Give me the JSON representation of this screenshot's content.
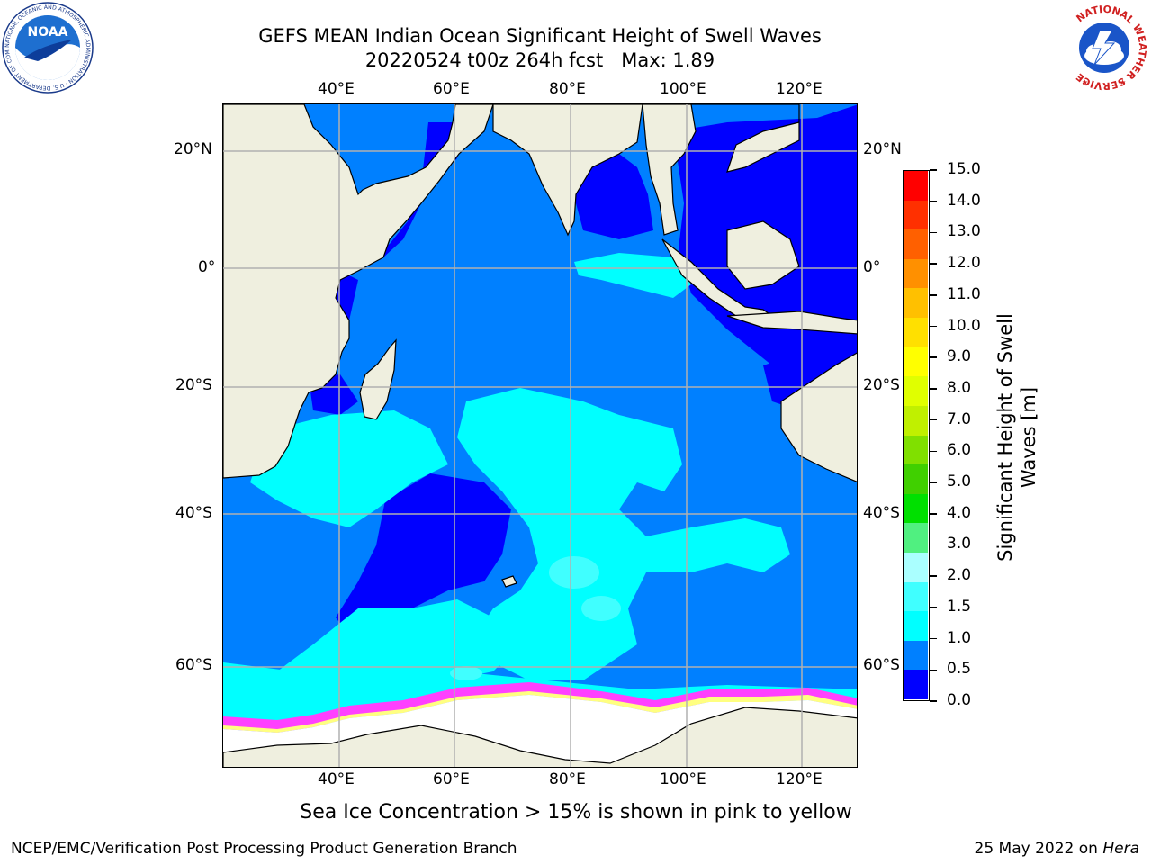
{
  "header": {
    "title_line1": "GEFS MEAN Indian Ocean Significant Height of Swell Waves",
    "title_line2": "20220524 t00z 264h fcst   Max: 1.89"
  },
  "logos": {
    "noaa": {
      "text": "NOAA",
      "ring_text": "NATIONAL OCEANIC AND ATMOSPHERIC ADMINISTRATION · U.S. DEPARTMENT OF COMMERCE"
    },
    "nws": {
      "ring_text": "NATIONAL WEATHER SERVICE"
    }
  },
  "map": {
    "lon_ticks_top": [
      "40°E",
      "60°E",
      "80°E",
      "100°E",
      "120°E"
    ],
    "lon_ticks_bottom": [
      "40°E",
      "60°E",
      "80°E",
      "100°E",
      "120°E"
    ],
    "lat_ticks_left": [
      "20°N",
      "0°",
      "20°S",
      "40°S",
      "60°S"
    ],
    "lat_ticks_right": [
      "20°N",
      "0°",
      "20°S",
      "40°S",
      "60°S"
    ],
    "colors": {
      "land": "#efefdf",
      "ocean_0_05": "#0000ff",
      "ocean_05_10": "#0080ff",
      "ocean_10_15": "#00ffff",
      "ocean_15_20": "#40ffff",
      "ice_pink": "#ff40ff",
      "ice_yellow": "#ffff80",
      "ice_white": "#ffffff",
      "grid": "#b0b0b0"
    }
  },
  "colorbar": {
    "label_line1": "Significant Height of Swell",
    "label_line2": "Waves [m]",
    "ticks": [
      "15.0",
      "14.0",
      "13.0",
      "12.0",
      "11.0",
      "10.0",
      "9.0",
      "8.0",
      "7.0",
      "6.0",
      "5.0",
      "4.0",
      "3.0",
      "2.0",
      "1.5",
      "1.0",
      "0.5",
      "0.0"
    ],
    "colors_bottom_to_top": [
      "#0000ff",
      "#0080ff",
      "#00ffff",
      "#40ffff",
      "#aaffff",
      "#50f080",
      "#00e000",
      "#40d000",
      "#80e000",
      "#c0f000",
      "#e0ff00",
      "#ffff00",
      "#ffe000",
      "#ffc000",
      "#ff9000",
      "#ff6000",
      "#ff3000",
      "#ff0000"
    ]
  },
  "notes": {
    "sea_ice": "Sea Ice Concentration > 15% is shown in pink to yellow"
  },
  "footer": {
    "left": "NCEP/EMC/Verification Post Processing Product Generation Branch",
    "right_date": "25 May 2022 on ",
    "right_host": "Hera"
  }
}
